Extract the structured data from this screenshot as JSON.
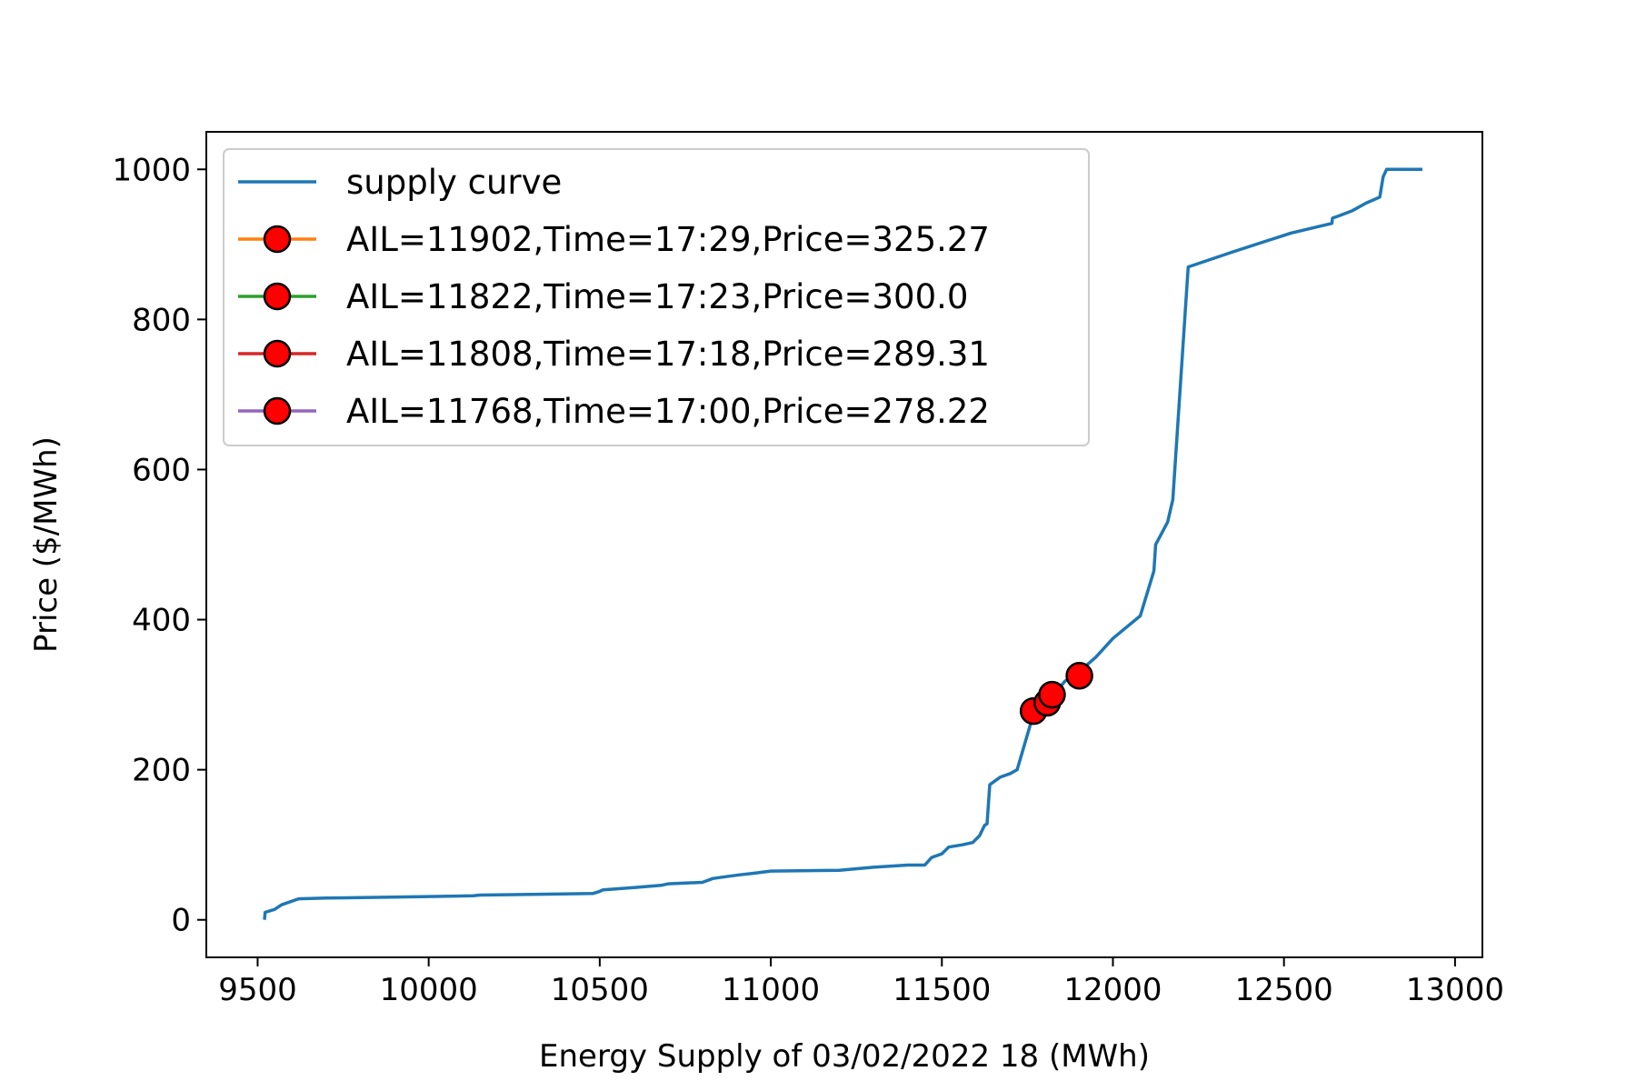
{
  "chart_data": {
    "type": "line",
    "title": "",
    "xlabel": "Energy Supply of 03/02/2022 18 (MWh)",
    "ylabel": "Price ($/MWh)",
    "xlim": [
      9350,
      13080
    ],
    "ylim": [
      -50,
      1050
    ],
    "xticks": [
      9500,
      10000,
      10500,
      11000,
      11500,
      12000,
      12500,
      13000
    ],
    "yticks": [
      0,
      200,
      400,
      600,
      800,
      1000
    ],
    "grid": false,
    "legend_position": "upper-left",
    "series": [
      {
        "name": "supply curve",
        "color": "#1f77b4",
        "points": [
          [
            9520,
            0
          ],
          [
            9522,
            10
          ],
          [
            9550,
            14
          ],
          [
            9570,
            20
          ],
          [
            9620,
            28
          ],
          [
            9700,
            29
          ],
          [
            9850,
            30
          ],
          [
            10000,
            31
          ],
          [
            10130,
            32
          ],
          [
            10150,
            33
          ],
          [
            10300,
            34
          ],
          [
            10480,
            35
          ],
          [
            10500,
            38
          ],
          [
            10510,
            40
          ],
          [
            10600,
            43
          ],
          [
            10680,
            46
          ],
          [
            10700,
            48
          ],
          [
            10800,
            50
          ],
          [
            10830,
            55
          ],
          [
            10860,
            57
          ],
          [
            10910,
            60
          ],
          [
            10950,
            62
          ],
          [
            11000,
            65
          ],
          [
            11200,
            66
          ],
          [
            11300,
            70
          ],
          [
            11400,
            73
          ],
          [
            11450,
            73
          ],
          [
            11470,
            83
          ],
          [
            11500,
            88
          ],
          [
            11520,
            97
          ],
          [
            11560,
            100
          ],
          [
            11590,
            103
          ],
          [
            11610,
            112
          ],
          [
            11625,
            126
          ],
          [
            11632,
            128
          ],
          [
            11640,
            180
          ],
          [
            11670,
            190
          ],
          [
            11700,
            195
          ],
          [
            11720,
            200
          ],
          [
            11760,
            262
          ],
          [
            11780,
            290
          ],
          [
            11800,
            293
          ],
          [
            11830,
            302
          ],
          [
            11860,
            318
          ],
          [
            11900,
            330
          ],
          [
            11950,
            350
          ],
          [
            12000,
            375
          ],
          [
            12040,
            390
          ],
          [
            12080,
            405
          ],
          [
            12120,
            465
          ],
          [
            12125,
            500
          ],
          [
            12160,
            530
          ],
          [
            12175,
            560
          ],
          [
            12220,
            870
          ],
          [
            12350,
            890
          ],
          [
            12520,
            915
          ],
          [
            12640,
            928
          ],
          [
            12642,
            935
          ],
          [
            12660,
            938
          ],
          [
            12700,
            945
          ],
          [
            12740,
            955
          ],
          [
            12780,
            963
          ],
          [
            12790,
            990
          ],
          [
            12800,
            1000
          ],
          [
            12905,
            1000
          ]
        ]
      }
    ],
    "markers": [
      {
        "label": "AIL=11902,Time=17:29,Price=325.27",
        "x": 11902,
        "y": 325.27,
        "line_color": "#ff7f0e",
        "fill": "#ff0000"
      },
      {
        "label": "AIL=11822,Time=17:23,Price=300.0",
        "x": 11822,
        "y": 300.0,
        "line_color": "#2ca02c",
        "fill": "#ff0000"
      },
      {
        "label": "AIL=11808,Time=17:18,Price=289.31",
        "x": 11808,
        "y": 289.31,
        "line_color": "#d62728",
        "fill": "#ff0000"
      },
      {
        "label": "AIL=11768,Time=17:00,Price=278.22",
        "x": 11768,
        "y": 278.22,
        "line_color": "#9467bd",
        "fill": "#ff0000"
      }
    ]
  }
}
